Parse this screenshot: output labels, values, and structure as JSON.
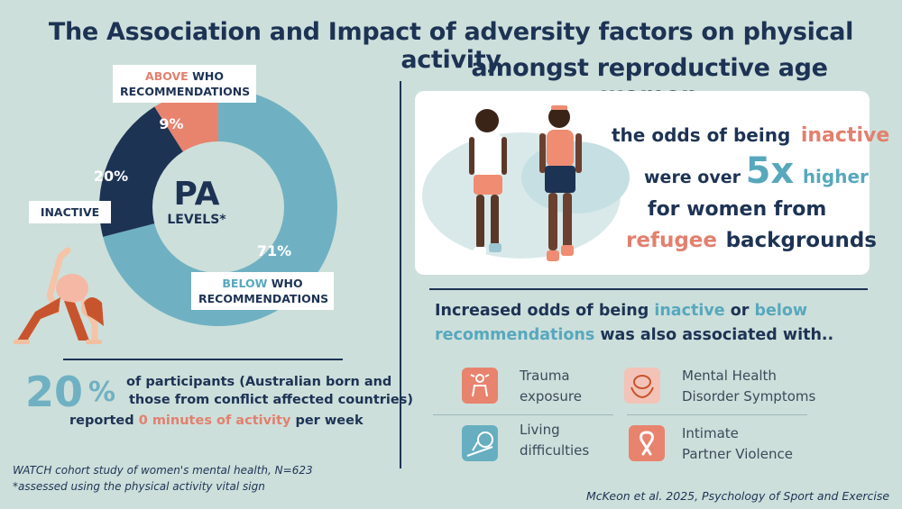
{
  "title": {
    "line1": "The Association and Impact of adversity factors on physical activity",
    "line2": "amongst reproductive age women"
  },
  "chart_data": {
    "type": "pie",
    "title": "PA LEVELS*",
    "center_big": "PA",
    "center_small": "LEVELS*",
    "segments": [
      {
        "name": "BELOW WHO RECOMMENDATIONS",
        "value": 71,
        "label": "71%",
        "color": "#6fb1c2"
      },
      {
        "name": "INACTIVE",
        "value": 20,
        "label": "20%",
        "color": "#1d3354"
      },
      {
        "name": "ABOVE WHO RECOMMENDATIONS",
        "value": 9,
        "label": "9%",
        "color": "#e8836e"
      }
    ]
  },
  "labels": {
    "above_a": "ABOVE",
    "above_b": "WHO",
    "above_c": "RECOMMENDATIONS",
    "inactive": "INACTIVE",
    "below_a": "BELOW",
    "below_b": "WHO",
    "below_c": "RECOMMENDATIONS"
  },
  "stat": {
    "number": "20",
    "percent": "%",
    "line1": "of participants (Australian born and",
    "line2": "those from conflict affected countries)",
    "line3_pre": "reported",
    "line3_hl": "0 minutes of activity",
    "line3_post": "per week"
  },
  "footnote": {
    "line1": "WATCH cohort study of women's mental health, N=623",
    "line2": "*assessed using the physical activity vital sign"
  },
  "odds": {
    "l1a": "the odds of being",
    "l1b": "inactive",
    "l2a": "were over",
    "l2b": "5x",
    "l2c": "higher",
    "l3": "for women from",
    "l4a": "refugee",
    "l4b": "backgrounds"
  },
  "subhead": {
    "a": "Increased odds of  being",
    "b": "inactive",
    "c": "or",
    "d": "below",
    "e": "recommendations",
    "f": "was also associated with.."
  },
  "factors": {
    "trauma_1": "Trauma",
    "trauma_2": "exposure",
    "mental_1": "Mental Health",
    "mental_2": "Disorder Symptoms",
    "living_1": "Living",
    "living_2": "difficulties",
    "ipv_1": "Intimate",
    "ipv_2": "Partner Violence"
  },
  "citation": "McKeon et al. 2025, Psychology of Sport and Exercise",
  "colors": {
    "navy": "#1d3354",
    "teal": "#6fb1c2",
    "coral": "#e8836e",
    "background": "#cddfdb"
  }
}
